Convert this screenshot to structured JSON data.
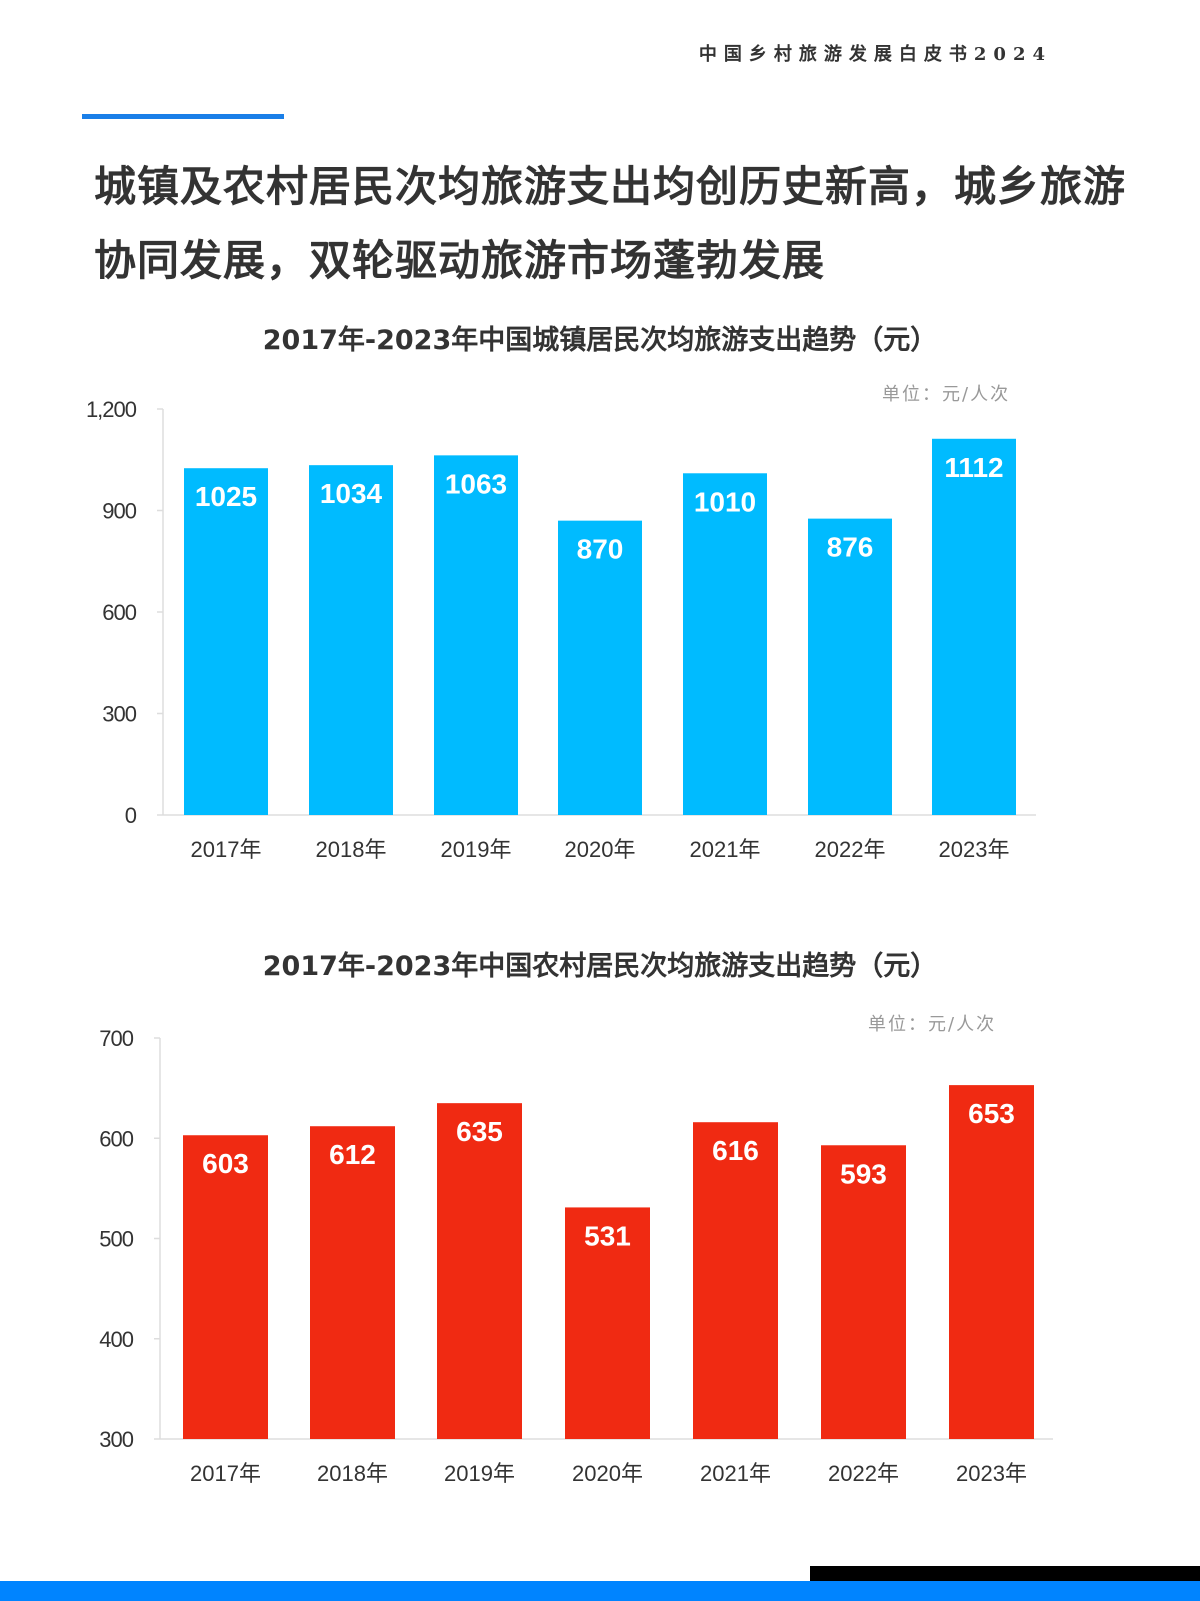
{
  "header": {
    "report_title": "中国乡村旅游发展白皮书2024"
  },
  "page_title": "城镇及农村居民次均旅游支出均创历史新高，城乡旅游协同发展，双轮驱动旅游市场蓬勃发展",
  "colors": {
    "accent": "#1a7fe8",
    "urban_bar": "#00bbff",
    "rural_bar": "#f02a12",
    "footer_blue": "#0084ff"
  },
  "chart_data": [
    {
      "type": "bar",
      "title": "2017年-2023年中国城镇居民次均旅游支出趋势（元）",
      "unit": "单位：元/人次",
      "categories": [
        "2017年",
        "2018年",
        "2019年",
        "2020年",
        "2021年",
        "2022年",
        "2023年"
      ],
      "values": [
        1025,
        1034,
        1063,
        870,
        1010,
        876,
        1112
      ],
      "ylim": [
        0,
        1200
      ],
      "yticks": [
        "0",
        "300",
        "600",
        "900",
        "1,200"
      ],
      "ytick_values": [
        0,
        300,
        600,
        900,
        1200
      ],
      "grid": false,
      "data_labels": true
    },
    {
      "type": "bar",
      "title": "2017年-2023年中国农村居民次均旅游支出趋势（元）",
      "unit": "单位：元/人次",
      "categories": [
        "2017年",
        "2018年",
        "2019年",
        "2020年",
        "2021年",
        "2022年",
        "2023年"
      ],
      "values": [
        603,
        612,
        635,
        531,
        616,
        593,
        653
      ],
      "ylim": [
        300,
        700
      ],
      "yticks": [
        "300",
        "400",
        "500",
        "600",
        "700"
      ],
      "ytick_values": [
        300,
        400,
        500,
        600,
        700
      ],
      "grid": false,
      "data_labels": true
    }
  ]
}
